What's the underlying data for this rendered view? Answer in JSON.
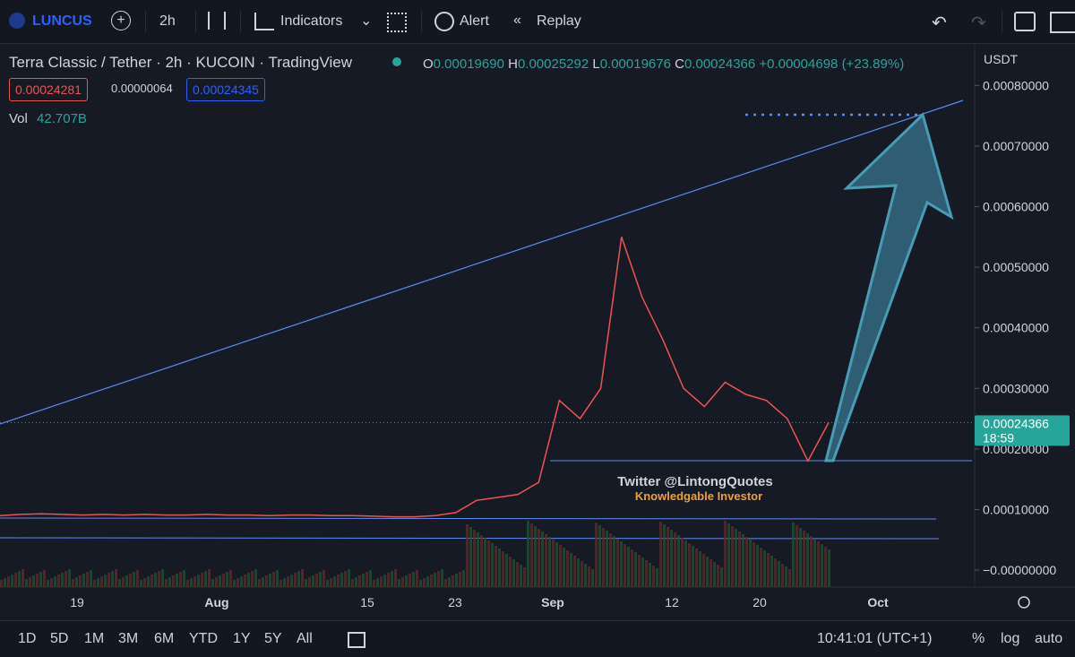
{
  "toolbar": {
    "symbol": "LUNCUS",
    "interval": "2h",
    "indicators": "Indicators",
    "alert": "Alert",
    "replay": "Replay"
  },
  "header": {
    "name": "Terra Classic / Tether",
    "interval": "2h",
    "exchange": "KUCOIN",
    "source": "TradingView",
    "open_label": "O",
    "open": "0.00019690",
    "high_label": "H",
    "high": "0.00025292",
    "low_label": "L",
    "low": "0.00019676",
    "close_label": "C",
    "close": "0.00024366",
    "change": "+0.00004698 (+23.89%)",
    "bid": "0.00024281",
    "spread": "0.00000064",
    "ask": "0.00024345",
    "vol_label": "Vol",
    "vol": "42.707B"
  },
  "chart_data": {
    "type": "line",
    "currency": "USDT",
    "values": [
      9e-05,
      9.2e-05,
      9.3e-05,
      9.2e-05,
      9.1e-05,
      9.2e-05,
      9.1e-05,
      9.2e-05,
      9.1e-05,
      9.1e-05,
      9.2e-05,
      9.1e-05,
      9.1e-05,
      9e-05,
      9.1e-05,
      9.1e-05,
      9e-05,
      9e-05,
      8.9e-05,
      8.8e-05,
      8.8e-05,
      9e-05,
      9.5e-05,
      0.000115,
      0.00012,
      0.000125,
      0.000145,
      0.00028,
      0.00025,
      0.0003,
      0.00055,
      0.00045,
      0.00038,
      0.0003,
      0.00027,
      0.00031,
      0.00029,
      0.00028,
      0.00025,
      0.00018,
      0.00024366
    ],
    "color": "#ef5350",
    "ylim": [
      -2.8e-05,
      0.00087
    ],
    "yticks": [
      {
        "value": 0.0008,
        "label": "0.00080000"
      },
      {
        "value": 0.0007,
        "label": "0.00070000"
      },
      {
        "value": 0.0006,
        "label": "0.00060000"
      },
      {
        "value": 0.0005,
        "label": "0.00050000"
      },
      {
        "value": 0.0004,
        "label": "0.00040000"
      },
      {
        "value": 0.0003,
        "label": "0.00030000"
      },
      {
        "value": 0.0002,
        "label": "0.00020000"
      },
      {
        "value": 0.0001,
        "label": "0.00010000"
      },
      {
        "value": 0,
        "label": "−0.00000000"
      }
    ],
    "last_price": {
      "value": 0.00024366,
      "label": "0.00024366"
    },
    "countdown": "18:59",
    "time_labels": [
      "19",
      "Aug",
      "15",
      "23",
      "Sep",
      "12",
      "20",
      "Oct"
    ],
    "watermark": "Twitter @LintongQuotes",
    "watermark_sub": "Knowledgable Investor"
  },
  "footer": {
    "ranges": [
      "1D",
      "5D",
      "1M",
      "3M",
      "6M",
      "YTD",
      "1Y",
      "5Y",
      "All"
    ],
    "clock": "10:41:01 (UTC+1)",
    "percent": "%",
    "log": "log",
    "auto": "auto"
  }
}
